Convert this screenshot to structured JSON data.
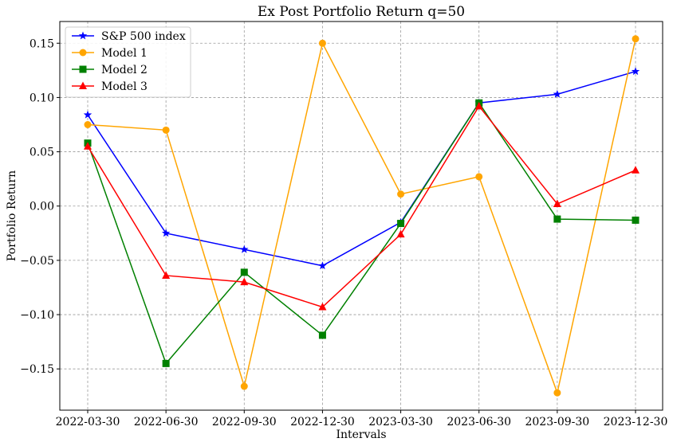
{
  "chart_data": {
    "type": "line",
    "title": "Ex Post Portfolio Return q=50",
    "xlabel": "Intervals",
    "ylabel": "Portfolio Return",
    "categories": [
      "2022-03-30",
      "2022-06-30",
      "2022-09-30",
      "2022-12-30",
      "2023-03-30",
      "2023-06-30",
      "2023-09-30",
      "2023-12-30"
    ],
    "ylim": [
      -0.188,
      0.17
    ],
    "yticks": [
      -0.15,
      -0.1,
      -0.05,
      0.0,
      0.05,
      0.1,
      0.15
    ],
    "ytick_labels": [
      "−0.15",
      "−0.10",
      "−0.05",
      "0.00",
      "0.05",
      "0.10",
      "0.15"
    ],
    "grid": true,
    "legend_position": "top-left",
    "series": [
      {
        "name": "S&P 500 index",
        "color": "#0000ff",
        "marker": "star",
        "values": [
          0.084,
          -0.025,
          -0.04,
          -0.055,
          -0.015,
          0.095,
          0.103,
          0.124
        ]
      },
      {
        "name": "Model 1",
        "color": "#ffa500",
        "marker": "circle",
        "values": [
          0.075,
          0.07,
          -0.166,
          0.15,
          0.011,
          0.027,
          -0.172,
          0.154
        ]
      },
      {
        "name": "Model 2",
        "color": "#008000",
        "marker": "square",
        "values": [
          0.058,
          -0.145,
          -0.061,
          -0.119,
          -0.016,
          0.095,
          -0.012,
          -0.013
        ]
      },
      {
        "name": "Model 3",
        "color": "#ff0000",
        "marker": "triangle",
        "values": [
          0.055,
          -0.064,
          -0.07,
          -0.093,
          -0.026,
          0.092,
          0.002,
          0.033
        ]
      }
    ]
  }
}
